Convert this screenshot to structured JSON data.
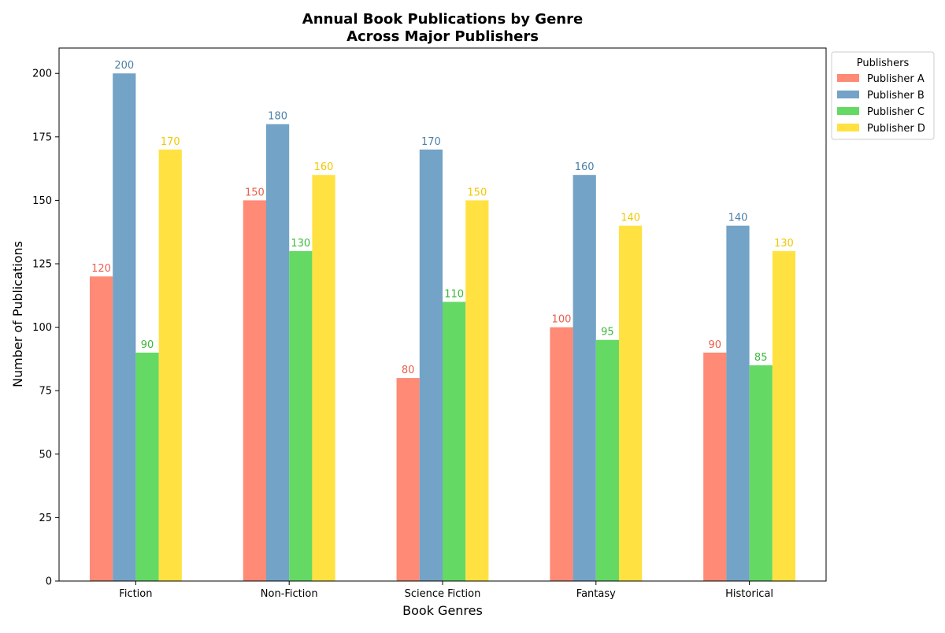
{
  "chart_data": {
    "type": "bar",
    "title": [
      "Annual Book Publications by Genre",
      "Across Major Publishers"
    ],
    "xlabel": "Book Genres",
    "ylabel": "Number of Publications",
    "ylim": [
      0,
      210
    ],
    "yticks": [
      0,
      25,
      50,
      75,
      100,
      125,
      150,
      175,
      200
    ],
    "grid": false,
    "categories": [
      "Fiction",
      "Non-Fiction",
      "Science Fiction",
      "Fantasy",
      "Historical"
    ],
    "legend": {
      "title": "Publishers",
      "placement": "outside-top-right"
    },
    "series": [
      {
        "name": "Publisher A",
        "values": [
          120,
          150,
          80,
          100,
          90
        ],
        "color": "#ff8a75",
        "label_color": "#e8604c"
      },
      {
        "name": "Publisher B",
        "values": [
          200,
          180,
          170,
          160,
          140
        ],
        "color": "#73a3c6",
        "label_color": "#4a7fa8"
      },
      {
        "name": "Publisher C",
        "values": [
          90,
          130,
          110,
          95,
          85
        ],
        "color": "#64d964",
        "label_color": "#3cb83c"
      },
      {
        "name": "Publisher D",
        "values": [
          170,
          160,
          150,
          140,
          130
        ],
        "color": "#ffe241",
        "label_color": "#f2c800"
      }
    ]
  }
}
